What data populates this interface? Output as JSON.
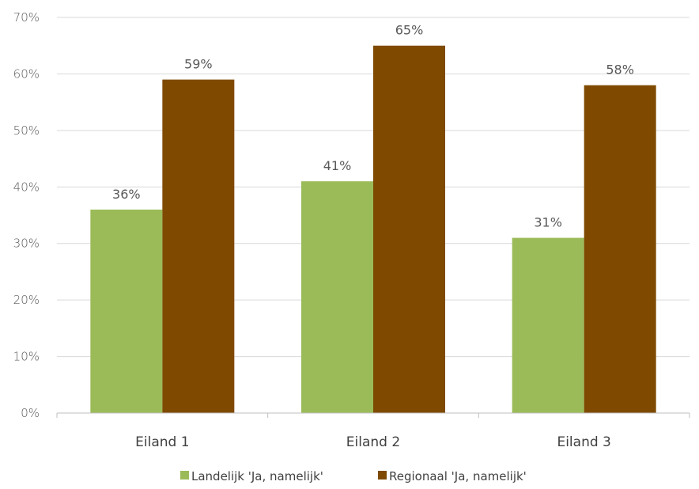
{
  "chart_data": {
    "type": "bar",
    "categories": [
      "Eiland 1",
      "Eiland 2",
      "Eiland 3"
    ],
    "series": [
      {
        "name": "Landelijk 'Ja, namelijk'",
        "values": [
          36,
          41,
          31
        ],
        "color": "#9bbb59"
      },
      {
        "name": "Regionaal 'Ja, namelijk'",
        "values": [
          59,
          65,
          58
        ],
        "color": "#7f4a00"
      }
    ],
    "value_labels": [
      [
        "36%",
        "41%",
        "31%"
      ],
      [
        "59%",
        "65%",
        "58%"
      ]
    ],
    "ylim": [
      0,
      70
    ],
    "yticks": [
      0,
      10,
      20,
      30,
      40,
      50,
      60,
      70
    ],
    "ytick_labels": [
      "0%",
      "10%",
      "20%",
      "30%",
      "40%",
      "50%",
      "60%",
      "70%"
    ],
    "grid": true,
    "legend_position": "bottom",
    "gridline_color": "#d9d9d9",
    "axis_color": "#bfbfbf"
  }
}
